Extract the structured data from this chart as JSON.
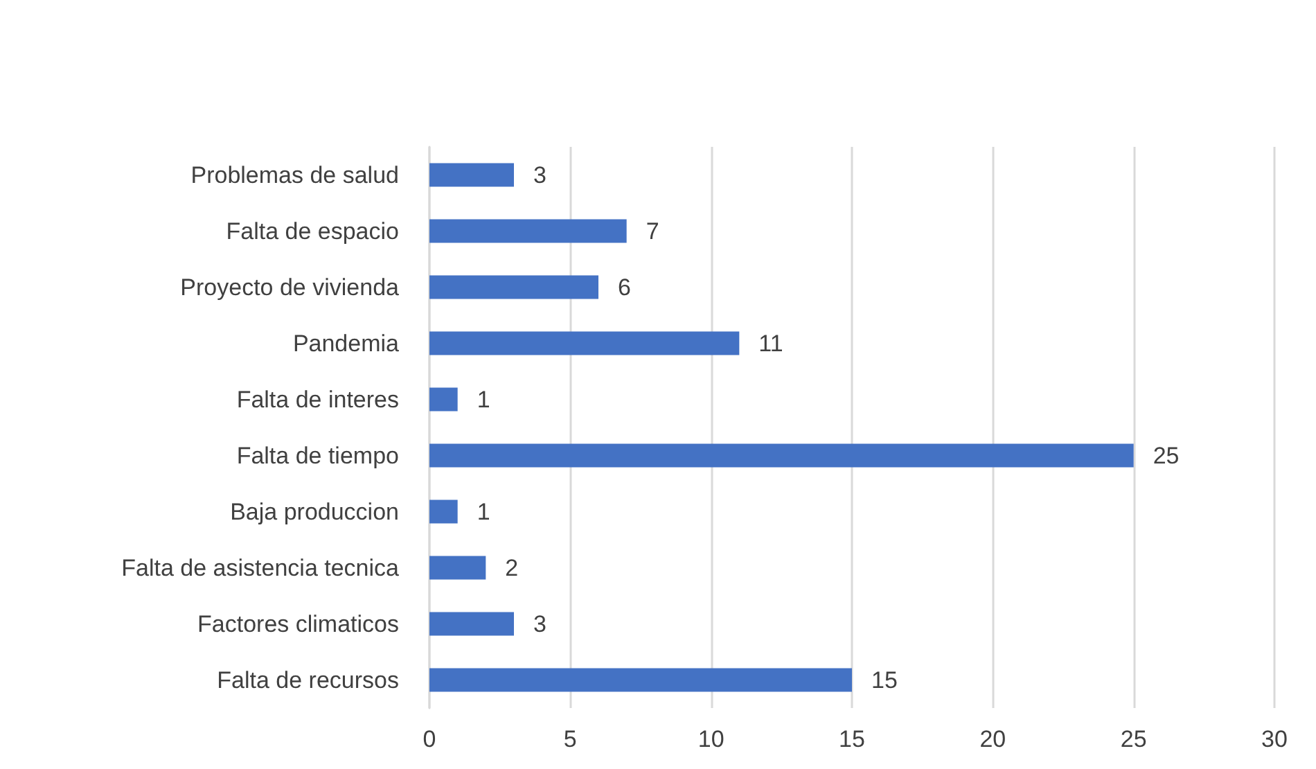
{
  "chart_data": {
    "type": "bar",
    "orientation": "horizontal",
    "categories": [
      "Problemas de salud",
      "Falta de espacio",
      "Proyecto de vivienda",
      "Pandemia",
      "Falta de interes",
      "Falta de tiempo",
      "Baja produccion",
      "Falta de asistencia tecnica",
      "Factores climaticos",
      "Falta de recursos"
    ],
    "values": [
      3,
      7,
      6,
      11,
      1,
      25,
      1,
      2,
      3,
      15
    ],
    "color": "#4472c4",
    "xlim": [
      0,
      30
    ],
    "xticks": [
      0,
      5,
      10,
      15,
      20,
      25,
      30
    ],
    "grid": "x",
    "data_labels": true
  }
}
